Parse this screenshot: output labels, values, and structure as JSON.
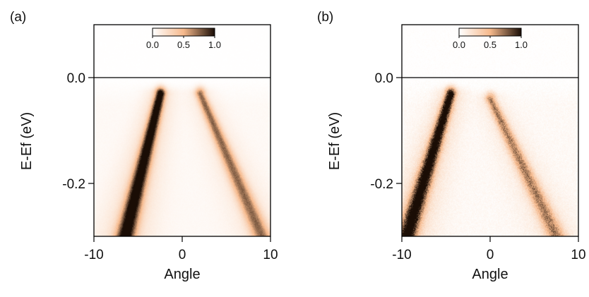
{
  "chart_data": [
    {
      "type": "heatmap",
      "panel_label": "(a)",
      "xlabel": "Angle",
      "ylabel": "E-Ef (eV)",
      "xlim": [
        -10,
        10
      ],
      "ylim": [
        -0.3,
        0.1
      ],
      "x_ticks": [
        -10,
        0,
        10
      ],
      "x_tick_labels": [
        "-10",
        "0",
        "10"
      ],
      "y_ticks": [
        0.0,
        -0.2
      ],
      "y_tick_labels": [
        "0.0",
        "-0.2"
      ],
      "fermi_level_line": 0.0,
      "colorbar": {
        "ticks": [
          0.0,
          0.5,
          1.0
        ],
        "labels": [
          "0.0",
          "0.5",
          "1.0"
        ],
        "colors": [
          "#ffffff",
          "#f6b98c",
          "#1a0d05"
        ]
      },
      "bands": [
        {
          "apex": [
            -2.5,
            -0.03
          ],
          "bottom": [
            -6.5,
            -0.3
          ],
          "intensity": 1.0
        },
        {
          "apex": [
            2.0,
            -0.03
          ],
          "bottom": [
            9.0,
            -0.3
          ],
          "intensity": 0.6
        }
      ]
    },
    {
      "type": "heatmap",
      "panel_label": "(b)",
      "xlabel": "Angle",
      "ylabel": "E-Ef (eV)",
      "xlim": [
        -10,
        10
      ],
      "ylim": [
        -0.3,
        0.1
      ],
      "x_ticks": [
        -10,
        0,
        10
      ],
      "x_tick_labels": [
        "-10",
        "0",
        "10"
      ],
      "y_ticks": [
        0.0,
        -0.2
      ],
      "y_tick_labels": [
        "0.0",
        "-0.2"
      ],
      "fermi_level_line": 0.0,
      "colorbar": {
        "ticks": [
          0.0,
          0.5,
          1.0
        ],
        "labels": [
          "0.0",
          "0.5",
          "1.0"
        ],
        "colors": [
          "#ffffff",
          "#f6b98c",
          "#1a0d05"
        ]
      },
      "bands": [
        {
          "apex": [
            -4.5,
            -0.03
          ],
          "bottom": [
            -9.5,
            -0.3
          ],
          "intensity": 1.0
        },
        {
          "apex": [
            0.0,
            -0.04
          ],
          "bottom": [
            7.5,
            -0.3
          ],
          "intensity": 0.55
        }
      ]
    }
  ]
}
